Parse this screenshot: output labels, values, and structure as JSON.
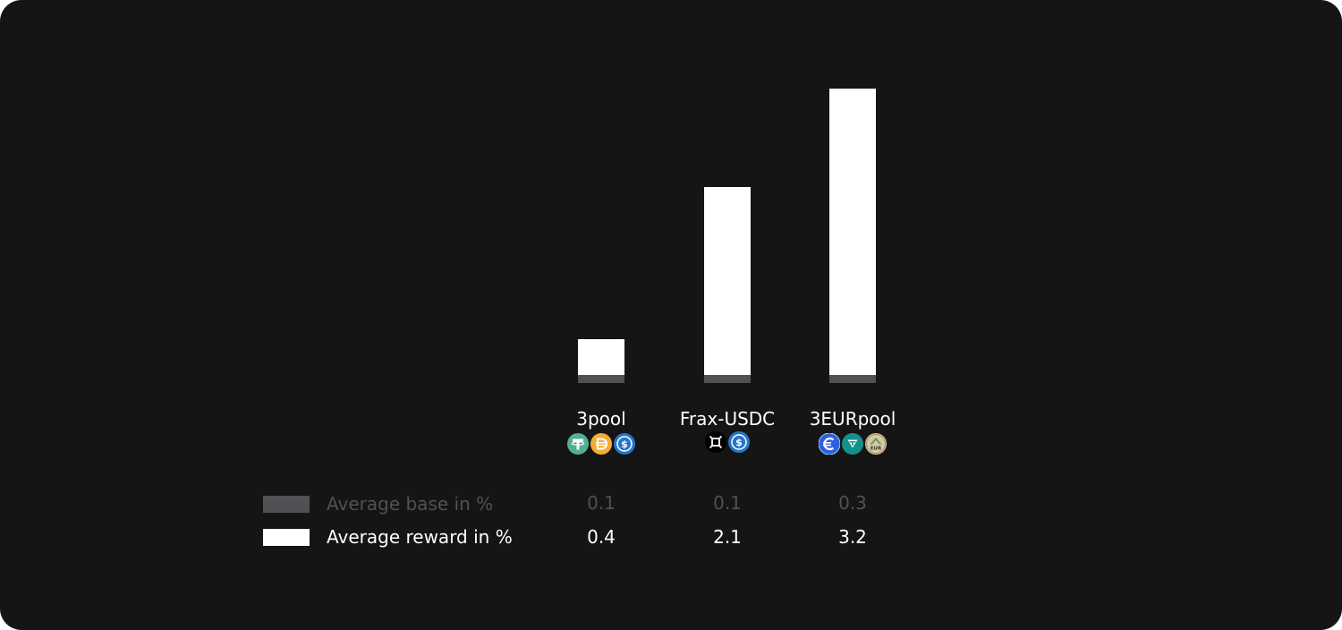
{
  "colors": {
    "background": "#151515",
    "base": "#515155",
    "reward": "#ffffff",
    "base_text": "#515155",
    "reward_text": "#ffffff"
  },
  "chart_data": {
    "type": "bar",
    "stacked": true,
    "categories": [
      "3pool",
      "Frax-USDC",
      "3EURpool"
    ],
    "series": [
      {
        "name": "Average base in %",
        "values": [
          0.1,
          0.1,
          0.3
        ]
      },
      {
        "name": "Average reward in %",
        "values": [
          0.4,
          2.1,
          3.2
        ]
      }
    ],
    "title": "",
    "xlabel": "",
    "ylabel": "",
    "grid": false,
    "legend_placement": "bottom-left"
  },
  "token_icons": [
    [
      "usdt-icon",
      "dai-icon",
      "usdc-icon"
    ],
    [
      "frax-icon",
      "usdc-icon"
    ],
    [
      "eurs-icon",
      "eurt-icon",
      "ageur-icon"
    ]
  ],
  "icon_texts": {
    "ageur": "EUR"
  }
}
